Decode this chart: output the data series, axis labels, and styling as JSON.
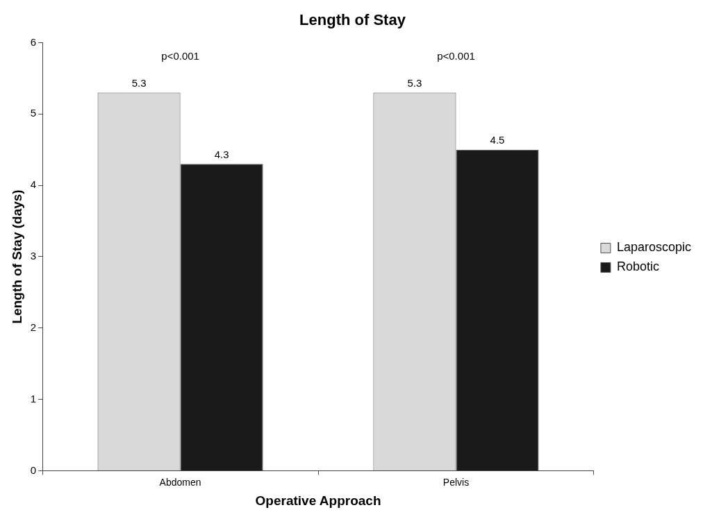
{
  "chart_data": {
    "type": "bar",
    "title": "Length of Stay",
    "xlabel": "Operative Approach",
    "ylabel": "Length of Stay (days)",
    "categories": [
      "Abdomen",
      "Pelvis"
    ],
    "series": [
      {
        "name": "Laparoscopic",
        "color": "#d9d9d9",
        "values": [
          5.3,
          5.3
        ]
      },
      {
        "name": "Robotic",
        "color": "#1a1a1a",
        "values": [
          4.3,
          4.5
        ]
      }
    ],
    "ylim": [
      0,
      6
    ],
    "yticks": [
      0,
      1,
      2,
      3,
      4,
      5,
      6
    ],
    "grid": false,
    "legend": "right",
    "data_labels": true,
    "annotations": [
      "p<0.001",
      "p<0.001"
    ]
  }
}
